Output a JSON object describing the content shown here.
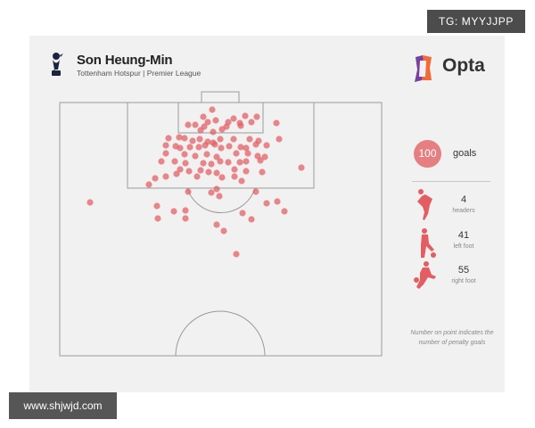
{
  "header": {
    "player_name": "Son Heung-Min",
    "subtitle": "Tottenham Hotspur | Premier League",
    "brand": "Opta"
  },
  "stats": {
    "total_goals": "100",
    "total_label": "goals",
    "headers": {
      "value": "4",
      "label": "headers"
    },
    "left_foot": {
      "value": "41",
      "label": "left foot"
    },
    "right_foot": {
      "value": "55",
      "label": "right foot"
    }
  },
  "note": "Number on point indicates the number of penalty goals",
  "watermarks": {
    "top": "TG: MYYJJPP",
    "bottom": "www.shjwjd.com"
  },
  "colors": {
    "shot": "#e35d62",
    "badge": "#e67f82",
    "pitch_line": "#9a9a9a",
    "card_bg": "#f1f1f1"
  },
  "icons": {
    "club_crest": "tottenham-cockerel-icon",
    "brand_logo": "opta-logo-icon",
    "header": "header-figure-icon",
    "left_foot": "left-foot-figure-icon",
    "right_foot": "right-foot-figure-icon"
  }
}
